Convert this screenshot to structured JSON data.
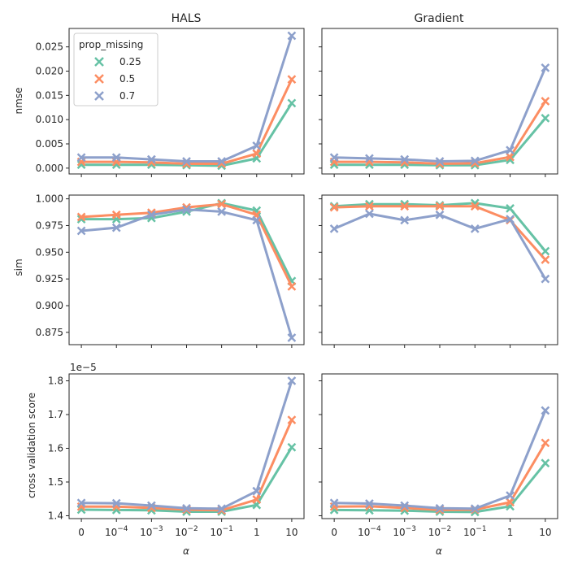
{
  "figure": {
    "columns": [
      "HALS",
      "Gradient"
    ],
    "xlabel": "α",
    "legend": {
      "title": "prop_missing",
      "placement": "upper-left of top-left panel"
    },
    "colors": {
      "0.25": "#66c2a5",
      "0.5": "#fc8d62",
      "0.7": "#8da0cb"
    }
  },
  "chart_data": {
    "type": "line",
    "x_categories": [
      "0",
      "1e-4",
      "1e-3",
      "1e-2",
      "1e-1",
      "1",
      "10"
    ],
    "series_names": [
      "0.25",
      "0.5",
      "0.7"
    ],
    "rows": [
      {
        "ylabel": "nmse",
        "ylim": [
          -0.0012,
          0.0288
        ],
        "yticks": [
          0.0,
          0.005,
          0.01,
          0.015,
          0.02,
          0.025
        ],
        "ytick_labels": [
          "0.000",
          "0.005",
          "0.010",
          "0.015",
          "0.020",
          "0.025"
        ],
        "offset_text": "",
        "panels": [
          {
            "title": "HALS",
            "series": [
              {
                "name": "0.25",
                "values": [
                  0.0007,
                  0.0007,
                  0.0007,
                  0.0006,
                  0.0005,
                  0.002,
                  0.0134
                ]
              },
              {
                "name": "0.5",
                "values": [
                  0.0013,
                  0.0013,
                  0.0012,
                  0.0009,
                  0.0009,
                  0.003,
                  0.0183
                ]
              },
              {
                "name": "0.7",
                "values": [
                  0.0022,
                  0.0022,
                  0.0018,
                  0.0014,
                  0.0014,
                  0.0046,
                  0.0273
                ]
              }
            ]
          },
          {
            "title": "Gradient",
            "series": [
              {
                "name": "0.25",
                "values": [
                  0.0007,
                  0.0007,
                  0.0007,
                  0.0006,
                  0.0006,
                  0.0017,
                  0.0103
                ]
              },
              {
                "name": "0.5",
                "values": [
                  0.0013,
                  0.0013,
                  0.0012,
                  0.0009,
                  0.001,
                  0.0023,
                  0.0138
                ]
              },
              {
                "name": "0.7",
                "values": [
                  0.0022,
                  0.002,
                  0.0018,
                  0.0014,
                  0.0015,
                  0.0037,
                  0.0207
                ]
              }
            ]
          }
        ]
      },
      {
        "ylabel": "sim",
        "ylim": [
          0.8635,
          1.0035
        ],
        "yticks": [
          0.875,
          0.9,
          0.925,
          0.95,
          0.975,
          1.0
        ],
        "ytick_labels": [
          "0.875",
          "0.900",
          "0.925",
          "0.950",
          "0.975",
          "1.000"
        ],
        "offset_text": "",
        "panels": [
          {
            "title": "HALS",
            "series": [
              {
                "name": "0.25",
                "values": [
                  0.981,
                  0.981,
                  0.982,
                  0.988,
                  0.996,
                  0.989,
                  0.923
                ]
              },
              {
                "name": "0.5",
                "values": [
                  0.983,
                  0.985,
                  0.987,
                  0.992,
                  0.995,
                  0.985,
                  0.918
                ]
              },
              {
                "name": "0.7",
                "values": [
                  0.97,
                  0.973,
                  0.985,
                  0.99,
                  0.988,
                  0.98,
                  0.87
                ]
              }
            ]
          },
          {
            "title": "Gradient",
            "series": [
              {
                "name": "0.25",
                "values": [
                  0.993,
                  0.995,
                  0.995,
                  0.994,
                  0.996,
                  0.991,
                  0.951
                ]
              },
              {
                "name": "0.5",
                "values": [
                  0.992,
                  0.993,
                  0.993,
                  0.993,
                  0.993,
                  0.98,
                  0.943
                ]
              },
              {
                "name": "0.7",
                "values": [
                  0.972,
                  0.986,
                  0.98,
                  0.985,
                  0.972,
                  0.981,
                  0.925
                ]
              }
            ]
          }
        ]
      },
      {
        "ylabel": "cross validation score",
        "ylim": [
          1.3915,
          1.8205
        ],
        "yticks": [
          1.4,
          1.5,
          1.6,
          1.7,
          1.8
        ],
        "ytick_labels": [
          "1.4",
          "1.5",
          "1.6",
          "1.7",
          "1.8"
        ],
        "offset_text": "1e−5",
        "panels": [
          {
            "title": "HALS",
            "series": [
              {
                "name": "0.25",
                "values": [
                  1.418,
                  1.417,
                  1.416,
                  1.412,
                  1.412,
                  1.432,
                  1.603
                ]
              },
              {
                "name": "0.5",
                "values": [
                  1.427,
                  1.427,
                  1.423,
                  1.418,
                  1.416,
                  1.448,
                  1.684
                ]
              },
              {
                "name": "0.7",
                "values": [
                  1.438,
                  1.437,
                  1.43,
                  1.422,
                  1.421,
                  1.473,
                  1.8
                ]
              }
            ]
          },
          {
            "title": "Gradient",
            "series": [
              {
                "name": "0.25",
                "values": [
                  1.417,
                  1.416,
                  1.415,
                  1.412,
                  1.411,
                  1.428,
                  1.556
                ]
              },
              {
                "name": "0.5",
                "values": [
                  1.427,
                  1.428,
                  1.423,
                  1.417,
                  1.418,
                  1.44,
                  1.616
                ]
              },
              {
                "name": "0.7",
                "values": [
                  1.438,
                  1.436,
                  1.43,
                  1.422,
                  1.421,
                  1.46,
                  1.712
                ]
              }
            ]
          }
        ]
      }
    ]
  }
}
